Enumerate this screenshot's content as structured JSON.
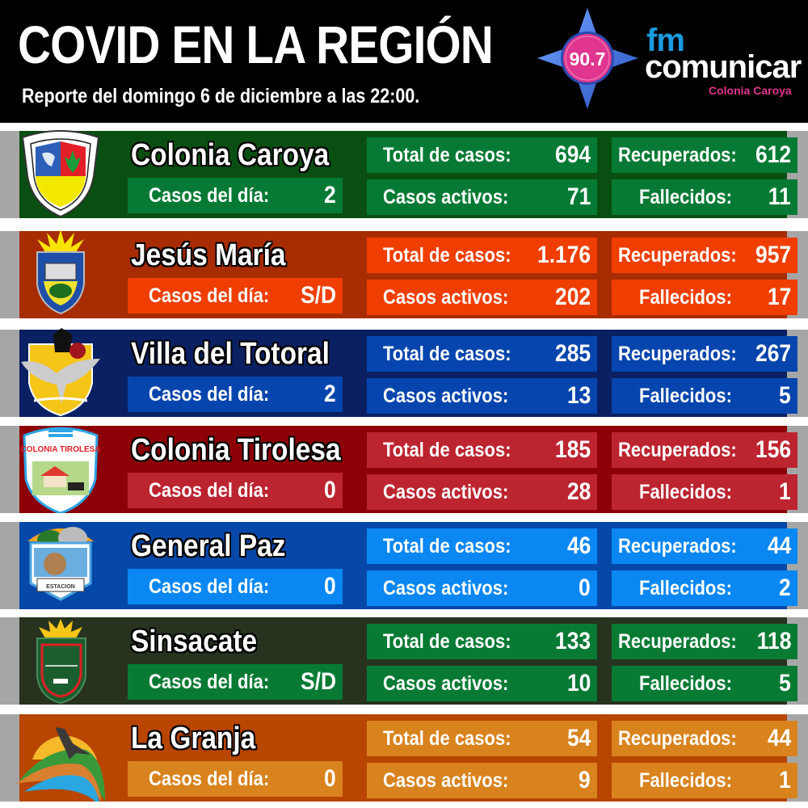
{
  "header": {
    "title": "COVID EN LA REGIÓN",
    "subtitle": "Reporte del domingo 6 de diciembre a las 22:00."
  },
  "station": {
    "frequency": "90.7",
    "brand_prefix": "fm",
    "brand_name": "comunicar",
    "location": "Colonia Caroya",
    "colors": {
      "star": "#3c6fd8",
      "circle": "#e0368f",
      "fm": "#1a9be0",
      "location": "#e0368f"
    }
  },
  "labels": {
    "casos_dia": "Casos del día:",
    "total": "Total de casos:",
    "activos": "Casos activos:",
    "recuperados": "Recuperados:",
    "fallecidos": "Fallecidos:"
  },
  "localities": [
    {
      "name": "Colonia Caroya",
      "casos_dia": "2",
      "total": "694",
      "activos": "71",
      "recuperados": "612",
      "fallecidos": "11",
      "crest_icon": "colonia-caroya-crest-icon",
      "band_color": "#0a4f12",
      "box_color": "#067a34"
    },
    {
      "name": "Jesús María",
      "casos_dia": "S/D",
      "total": "1.176",
      "activos": "202",
      "recuperados": "957",
      "fallecidos": "17",
      "crest_icon": "jesus-maria-crest-icon",
      "band_color": "#a72c00",
      "box_color": "#ef3e00"
    },
    {
      "name": "Villa del Totoral",
      "casos_dia": "2",
      "total": "285",
      "activos": "13",
      "recuperados": "267",
      "fallecidos": "5",
      "crest_icon": "villa-del-totoral-crest-icon",
      "band_color": "#0a2062",
      "box_color": "#0645ad"
    },
    {
      "name": "Colonia Tirolesa",
      "casos_dia": "0",
      "total": "185",
      "activos": "28",
      "recuperados": "156",
      "fallecidos": "1",
      "crest_icon": "colonia-tirolesa-crest-icon",
      "band_color": "#8c0006",
      "box_color": "#bc2430"
    },
    {
      "name": "General Paz",
      "casos_dia": "0",
      "total": "46",
      "activos": "0",
      "recuperados": "44",
      "fallecidos": "2",
      "crest_icon": "general-paz-crest-icon",
      "band_color": "#0548a8",
      "box_color": "#0a87f2"
    },
    {
      "name": "Sinsacate",
      "casos_dia": "S/D",
      "total": "133",
      "activos": "10",
      "recuperados": "118",
      "fallecidos": "5",
      "crest_icon": "sinsacate-crest-icon",
      "band_color": "#27331f",
      "box_color": "#087a34"
    },
    {
      "name": "La Granja",
      "casos_dia": "0",
      "total": "54",
      "activos": "9",
      "recuperados": "44",
      "fallecidos": "1",
      "crest_icon": "la-granja-crest-icon",
      "band_color": "#b84500",
      "box_color": "#d9831e"
    }
  ]
}
